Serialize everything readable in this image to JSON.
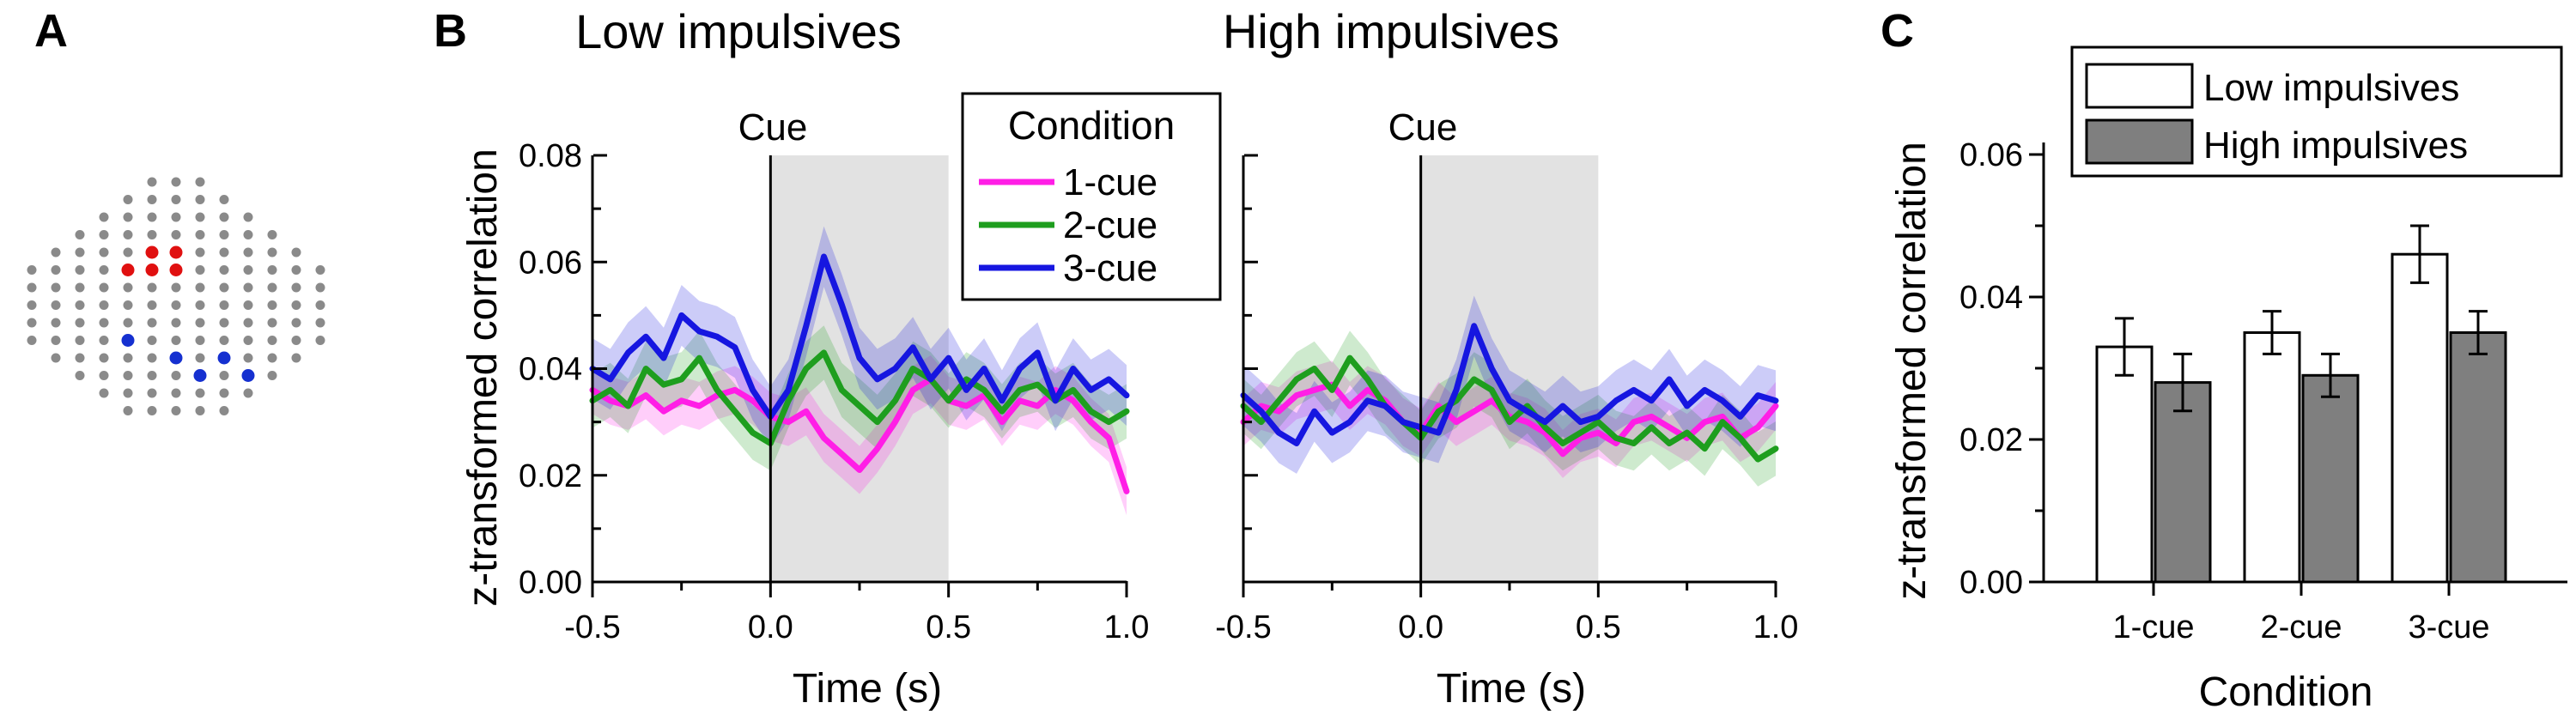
{
  "panels": {
    "a": "A",
    "b": "B",
    "c": "C"
  },
  "colors": {
    "c1": "#ff1ee6",
    "c2": "#1e9e1e",
    "c3": "#1616e0",
    "shade": "#e2e2e2",
    "elec_gray": "#8a8a8a",
    "elec_red": "#e01010",
    "elec_blue": "#1530d0",
    "bar_high": "#7f7f7f",
    "bar_low": "#ffffff"
  },
  "electrodes": {
    "rows": [
      3,
      5,
      7,
      9,
      11,
      13,
      13,
      13,
      13,
      13,
      11,
      9,
      7,
      5
    ],
    "red": [
      [
        4,
        4
      ],
      [
        4,
        5
      ],
      [
        5,
        4
      ],
      [
        5,
        5
      ],
      [
        5,
        6
      ]
    ],
    "blue": [
      [
        9,
        4
      ],
      [
        10,
        5
      ],
      [
        10,
        7
      ],
      [
        11,
        5
      ],
      [
        11,
        7
      ]
    ]
  },
  "chart_data": [
    {
      "type": "line",
      "title": "Low impulsives",
      "xlabel": "Time (s)",
      "ylabel": "z-transformed correlation",
      "xlim": [
        -0.5,
        1.0
      ],
      "ylim": [
        0,
        0.08
      ],
      "xticks": [
        "-0.5",
        "0.0",
        "0.5",
        "1.0"
      ],
      "yticks": [
        "0.00",
        "0.02",
        "0.04",
        "0.06",
        "0.08"
      ],
      "cue_label": "Cue",
      "cue_time": 0.0,
      "shaded_window": [
        0.0,
        0.5
      ],
      "legend_title": "Condition",
      "x": [
        -0.5,
        -0.45,
        -0.4,
        -0.35,
        -0.3,
        -0.25,
        -0.2,
        -0.15,
        -0.1,
        -0.05,
        0.0,
        0.05,
        0.1,
        0.15,
        0.2,
        0.25,
        0.3,
        0.35,
        0.4,
        0.45,
        0.5,
        0.55,
        0.6,
        0.65,
        0.7,
        0.75,
        0.8,
        0.85,
        0.9,
        0.95,
        1.0
      ],
      "series": [
        {
          "name": "1-cue",
          "values": [
            0.036,
            0.034,
            0.033,
            0.035,
            0.032,
            0.034,
            0.033,
            0.035,
            0.036,
            0.034,
            0.031,
            0.03,
            0.032,
            0.027,
            0.024,
            0.021,
            0.025,
            0.03,
            0.036,
            0.038,
            0.034,
            0.033,
            0.035,
            0.03,
            0.034,
            0.033,
            0.036,
            0.034,
            0.03,
            0.027,
            0.017
          ]
        },
        {
          "name": "2-cue",
          "values": [
            0.034,
            0.036,
            0.033,
            0.04,
            0.037,
            0.038,
            0.042,
            0.036,
            0.032,
            0.028,
            0.026,
            0.034,
            0.04,
            0.043,
            0.036,
            0.033,
            0.03,
            0.034,
            0.04,
            0.038,
            0.034,
            0.038,
            0.036,
            0.032,
            0.036,
            0.037,
            0.034,
            0.036,
            0.032,
            0.03,
            0.032
          ]
        },
        {
          "name": "3-cue",
          "values": [
            0.04,
            0.038,
            0.043,
            0.046,
            0.042,
            0.05,
            0.047,
            0.046,
            0.044,
            0.036,
            0.031,
            0.036,
            0.048,
            0.061,
            0.052,
            0.042,
            0.038,
            0.04,
            0.044,
            0.038,
            0.042,
            0.036,
            0.04,
            0.034,
            0.04,
            0.043,
            0.034,
            0.04,
            0.036,
            0.038,
            0.035
          ]
        }
      ]
    },
    {
      "type": "line",
      "title": "High impulsives",
      "xlabel": "Time (s)",
      "ylabel": "",
      "xlim": [
        -0.5,
        1.0
      ],
      "ylim": [
        0,
        0.08
      ],
      "xticks": [
        "-0.5",
        "0.0",
        "0.5",
        "1.0"
      ],
      "cue_label": "Cue",
      "cue_time": 0.0,
      "shaded_window": [
        0.0,
        0.5
      ],
      "x": [
        -0.5,
        -0.45,
        -0.4,
        -0.35,
        -0.3,
        -0.25,
        -0.2,
        -0.15,
        -0.1,
        -0.05,
        0.0,
        0.05,
        0.1,
        0.15,
        0.2,
        0.25,
        0.3,
        0.35,
        0.4,
        0.45,
        0.5,
        0.55,
        0.6,
        0.65,
        0.7,
        0.75,
        0.8,
        0.85,
        0.9,
        0.95,
        1.0
      ],
      "series": [
        {
          "name": "1-cue",
          "values": [
            0.03,
            0.033,
            0.032,
            0.035,
            0.036,
            0.037,
            0.033,
            0.036,
            0.034,
            0.03,
            0.028,
            0.033,
            0.03,
            0.032,
            0.034,
            0.031,
            0.03,
            0.028,
            0.024,
            0.027,
            0.028,
            0.026,
            0.03,
            0.031,
            0.029,
            0.027,
            0.03,
            0.031,
            0.027,
            0.029,
            0.033
          ]
        },
        {
          "name": "2-cue",
          "values": [
            0.033,
            0.03,
            0.034,
            0.038,
            0.04,
            0.036,
            0.042,
            0.038,
            0.033,
            0.03,
            0.027,
            0.032,
            0.034,
            0.038,
            0.036,
            0.03,
            0.033,
            0.029,
            0.026,
            0.028,
            0.03,
            0.027,
            0.026,
            0.029,
            0.026,
            0.028,
            0.025,
            0.03,
            0.027,
            0.023,
            0.025
          ]
        },
        {
          "name": "3-cue",
          "values": [
            0.035,
            0.032,
            0.028,
            0.026,
            0.032,
            0.028,
            0.03,
            0.034,
            0.033,
            0.03,
            0.029,
            0.028,
            0.036,
            0.048,
            0.04,
            0.034,
            0.032,
            0.03,
            0.033,
            0.03,
            0.031,
            0.034,
            0.036,
            0.034,
            0.038,
            0.033,
            0.036,
            0.034,
            0.031,
            0.035,
            0.034
          ]
        }
      ]
    },
    {
      "type": "bar",
      "title": "",
      "xlabel": "Condition",
      "ylabel": "z-transformed correlation",
      "ylim": [
        0,
        0.06
      ],
      "yticks": [
        "0.00",
        "0.02",
        "0.04",
        "0.06"
      ],
      "categories": [
        "1-cue",
        "2-cue",
        "3-cue"
      ],
      "series": [
        {
          "name": "Low impulsives",
          "values": [
            0.033,
            0.035,
            0.046
          ],
          "errors": [
            0.004,
            0.003,
            0.004
          ]
        },
        {
          "name": "High impulsives",
          "values": [
            0.028,
            0.029,
            0.035
          ],
          "errors": [
            0.004,
            0.003,
            0.003
          ]
        }
      ]
    }
  ]
}
